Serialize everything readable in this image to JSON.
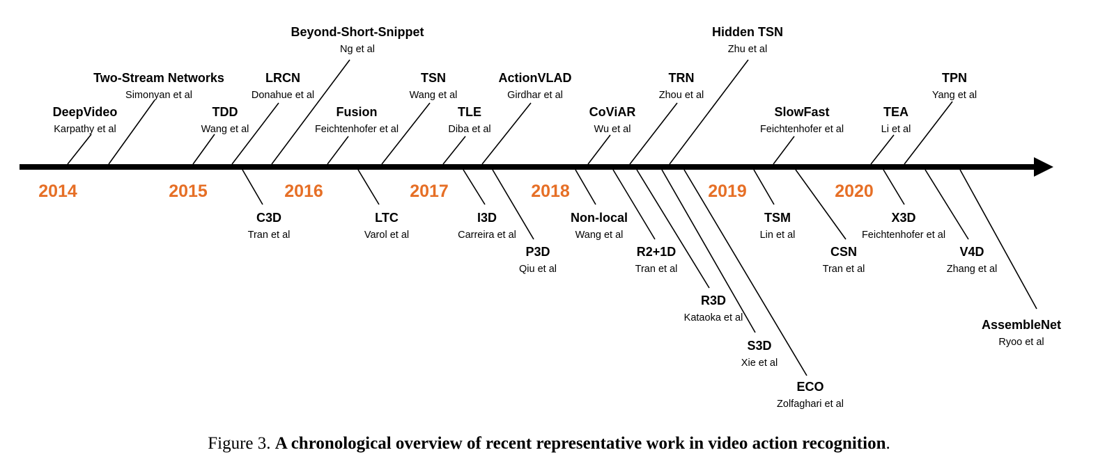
{
  "colors": {
    "year": "#E66F26",
    "ink": "#000000"
  },
  "years": [
    "2014",
    "2015",
    "2016",
    "2017",
    "2018",
    "2019",
    "2020"
  ],
  "works": [
    {
      "name": "DeepVideo",
      "authors": "Karpathy et al",
      "side": "above"
    },
    {
      "name": "Two-Stream Networks",
      "authors": "Simonyan et al",
      "side": "above"
    },
    {
      "name": "TDD",
      "authors": "Wang et al",
      "side": "above"
    },
    {
      "name": "LRCN",
      "authors": "Donahue et al",
      "side": "above"
    },
    {
      "name": "Beyond-Short-Snippet",
      "authors": "Ng et al",
      "side": "above"
    },
    {
      "name": "Fusion",
      "authors": "Feichtenhofer et al",
      "side": "above"
    },
    {
      "name": "TSN",
      "authors": "Wang et al",
      "side": "above"
    },
    {
      "name": "TLE",
      "authors": "Diba et al",
      "side": "above"
    },
    {
      "name": "ActionVLAD",
      "authors": "Girdhar et al",
      "side": "above"
    },
    {
      "name": "CoViAR",
      "authors": "Wu et al",
      "side": "above"
    },
    {
      "name": "TRN",
      "authors": "Zhou et al",
      "side": "above"
    },
    {
      "name": "Hidden TSN",
      "authors": "Zhu et al",
      "side": "above"
    },
    {
      "name": "SlowFast",
      "authors": "Feichtenhofer et al",
      "side": "above"
    },
    {
      "name": "TEA",
      "authors": "Li et al",
      "side": "above"
    },
    {
      "name": "TPN",
      "authors": "Yang et al",
      "side": "above"
    },
    {
      "name": "C3D",
      "authors": "Tran et al",
      "side": "below"
    },
    {
      "name": "LTC",
      "authors": "Varol et al",
      "side": "below"
    },
    {
      "name": "I3D",
      "authors": "Carreira et al",
      "side": "below"
    },
    {
      "name": "P3D",
      "authors": "Qiu et al",
      "side": "below"
    },
    {
      "name": "Non-local",
      "authors": "Wang et al",
      "side": "below"
    },
    {
      "name": "R2+1D",
      "authors": "Tran et al",
      "side": "below"
    },
    {
      "name": "R3D",
      "authors": "Kataoka et al",
      "side": "below"
    },
    {
      "name": "S3D",
      "authors": "Xie et al",
      "side": "below"
    },
    {
      "name": "ECO",
      "authors": "Zolfaghari et al",
      "side": "below"
    },
    {
      "name": "TSM",
      "authors": "Lin et al",
      "side": "below"
    },
    {
      "name": "CSN",
      "authors": "Tran et al",
      "side": "below"
    },
    {
      "name": "X3D",
      "authors": "Feichtenhofer et al",
      "side": "below"
    },
    {
      "name": "V4D",
      "authors": "Zhang et al",
      "side": "below"
    },
    {
      "name": "AssembleNet",
      "authors": "Ryoo et al",
      "side": "below"
    }
  ],
  "caption": {
    "prefix": "Figure 3.",
    "title": "A chronological overview of recent representative work in video action recognition",
    "suffix": "."
  }
}
